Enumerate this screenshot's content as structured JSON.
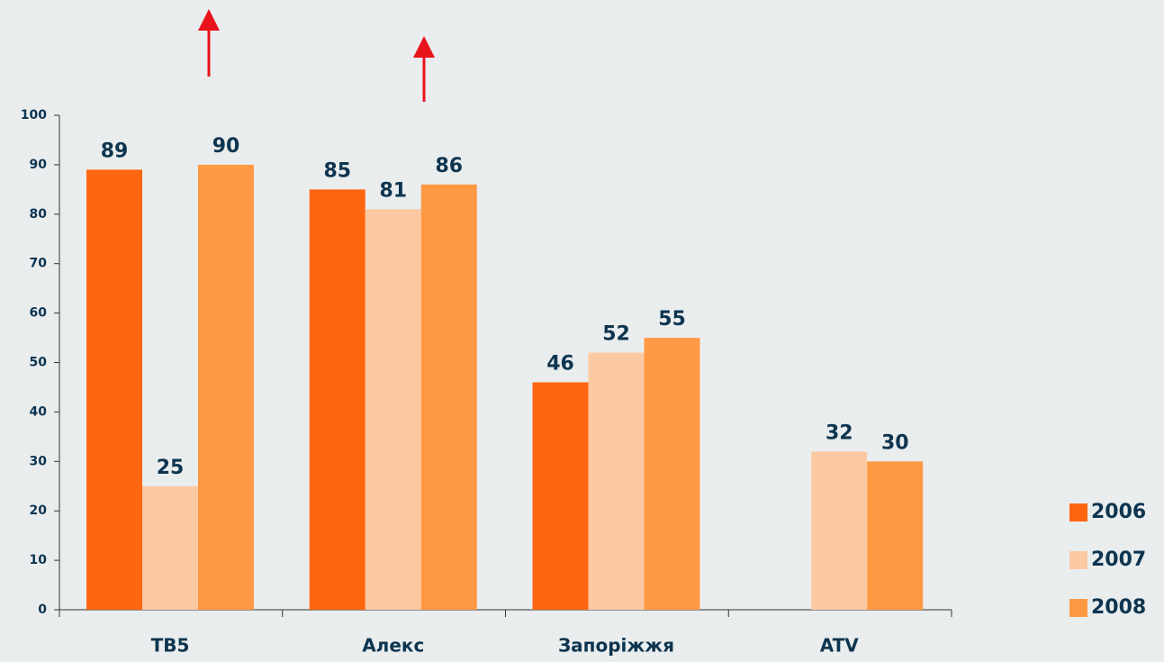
{
  "chart_data": {
    "type": "bar",
    "categories": [
      "ТВ5",
      "Алекс",
      "Запоріжжя",
      "ATV"
    ],
    "series": [
      {
        "name": "2006",
        "color": "#ff6611",
        "values": [
          89,
          85,
          46,
          null
        ]
      },
      {
        "name": "2007",
        "color": "#fdc9a3",
        "values": [
          25,
          81,
          52,
          32
        ]
      },
      {
        "name": "2008",
        "color": "#ff9944",
        "values": [
          90,
          86,
          55,
          30
        ]
      }
    ],
    "ylim": [
      0,
      100
    ],
    "yticks": [
      0,
      10,
      20,
      30,
      40,
      50,
      60,
      70,
      80,
      90,
      100
    ],
    "legend": "right"
  }
}
